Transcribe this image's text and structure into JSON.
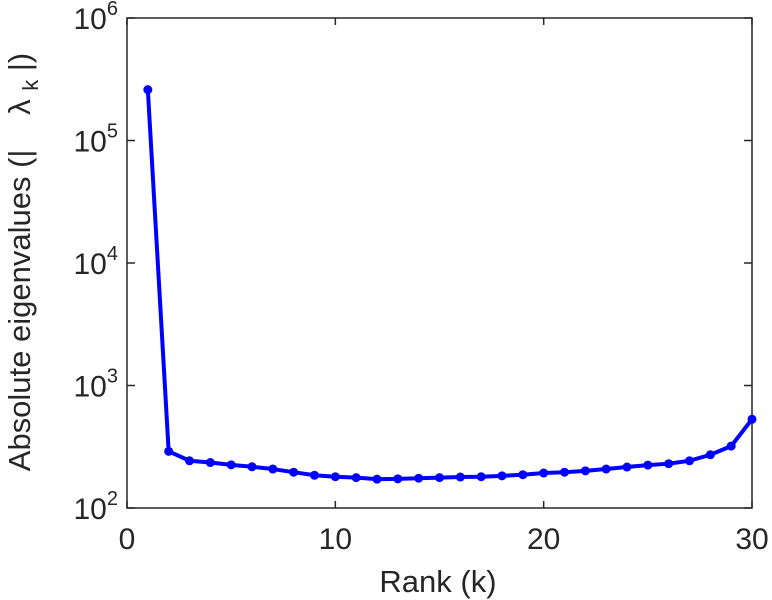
{
  "chart_data": {
    "type": "line",
    "xlabel": "Rank (k)",
    "ylabel_text": "Absolute eigenvalues (|",
    "ylabel_symbol": "λ",
    "ylabel_subscript": "k",
    "ylabel_close": "|)",
    "xlim": [
      0,
      30
    ],
    "ylim": [
      100,
      1000000
    ],
    "yscale": "log",
    "grid": false,
    "xticks": [
      0,
      10,
      20,
      30
    ],
    "xtick_labels": [
      "0",
      "10",
      "20",
      "30"
    ],
    "yticks": [
      100,
      1000,
      10000,
      100000,
      1000000
    ],
    "ytick_labels": [
      {
        "base": "10",
        "exp": "2"
      },
      {
        "base": "10",
        "exp": "3"
      },
      {
        "base": "10",
        "exp": "4"
      },
      {
        "base": "10",
        "exp": "5"
      },
      {
        "base": "10",
        "exp": "6"
      }
    ],
    "series": [
      {
        "color": "#0000ff",
        "x": [
          1,
          2,
          3,
          4,
          5,
          6,
          7,
          8,
          9,
          10,
          11,
          12,
          13,
          14,
          15,
          16,
          17,
          18,
          19,
          20,
          21,
          22,
          23,
          24,
          25,
          26,
          27,
          28,
          29,
          30
        ],
        "values": [
          260000,
          290,
          243,
          235,
          225,
          217,
          208,
          196,
          185,
          180,
          177,
          172,
          173,
          175,
          177,
          179,
          180,
          183,
          187,
          193,
          196,
          201,
          208,
          216,
          224,
          230,
          243,
          272,
          320,
          530
        ]
      }
    ]
  }
}
